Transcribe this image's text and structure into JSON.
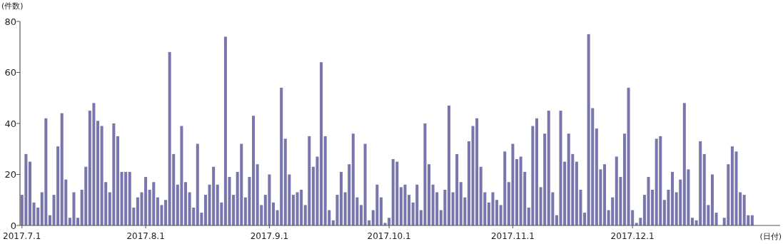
{
  "chart_data": {
    "type": "bar",
    "xlabel": "(日付)",
    "ylabel": "(件数)",
    "color": "#7876ad",
    "x": [
      "2017-07-01",
      "2017-07-02",
      "2017-07-03",
      "2017-07-04",
      "2017-07-05",
      "2017-07-06",
      "2017-07-07",
      "2017-07-08",
      "2017-07-09",
      "2017-07-10",
      "2017-07-11",
      "2017-07-12",
      "2017-07-13",
      "2017-07-14",
      "2017-07-15",
      "2017-07-16",
      "2017-07-17",
      "2017-07-18",
      "2017-07-19",
      "2017-07-20",
      "2017-07-21",
      "2017-07-22",
      "2017-07-23",
      "2017-07-24",
      "2017-07-25",
      "2017-07-26",
      "2017-07-27",
      "2017-07-28",
      "2017-07-29",
      "2017-07-30",
      "2017-07-31",
      "2017-08-01",
      "2017-08-02",
      "2017-08-03",
      "2017-08-04",
      "2017-08-05",
      "2017-08-06",
      "2017-08-07",
      "2017-08-08",
      "2017-08-09",
      "2017-08-10",
      "2017-08-11",
      "2017-08-12",
      "2017-08-13",
      "2017-08-14",
      "2017-08-15",
      "2017-08-16",
      "2017-08-17",
      "2017-08-18",
      "2017-08-19",
      "2017-08-20",
      "2017-08-21",
      "2017-08-22",
      "2017-08-23",
      "2017-08-24",
      "2017-08-25",
      "2017-08-26",
      "2017-08-27",
      "2017-08-28",
      "2017-08-29",
      "2017-08-30",
      "2017-08-31",
      "2017-09-01",
      "2017-09-02",
      "2017-09-03",
      "2017-09-04",
      "2017-09-05",
      "2017-09-06",
      "2017-09-07",
      "2017-09-08",
      "2017-09-09",
      "2017-09-10",
      "2017-09-11",
      "2017-09-12",
      "2017-09-13",
      "2017-09-14",
      "2017-09-15",
      "2017-09-16",
      "2017-09-17",
      "2017-09-18",
      "2017-09-19",
      "2017-09-20",
      "2017-09-21",
      "2017-09-22",
      "2017-09-23",
      "2017-09-24",
      "2017-09-25",
      "2017-09-26",
      "2017-09-27",
      "2017-09-28",
      "2017-09-29",
      "2017-09-30",
      "2017-10-01",
      "2017-10-02",
      "2017-10-03",
      "2017-10-04",
      "2017-10-05",
      "2017-10-06",
      "2017-10-07",
      "2017-10-08",
      "2017-10-09",
      "2017-10-10",
      "2017-10-11",
      "2017-10-12",
      "2017-10-13",
      "2017-10-14",
      "2017-10-15",
      "2017-10-16",
      "2017-10-17",
      "2017-10-18",
      "2017-10-19",
      "2017-10-20",
      "2017-10-21",
      "2017-10-22",
      "2017-10-23",
      "2017-10-24",
      "2017-10-25",
      "2017-10-26",
      "2017-10-27",
      "2017-10-28",
      "2017-10-29",
      "2017-10-30",
      "2017-10-31",
      "2017-11-01",
      "2017-11-02",
      "2017-11-03",
      "2017-11-04",
      "2017-11-05",
      "2017-11-06",
      "2017-11-07",
      "2017-11-08",
      "2017-11-09",
      "2017-11-10",
      "2017-11-11",
      "2017-11-12",
      "2017-11-13",
      "2017-11-14",
      "2017-11-15",
      "2017-11-16",
      "2017-11-17",
      "2017-11-18",
      "2017-11-19",
      "2017-11-20",
      "2017-11-21",
      "2017-11-22",
      "2017-11-23",
      "2017-11-24",
      "2017-11-25",
      "2017-11-26",
      "2017-11-27",
      "2017-11-28",
      "2017-11-29",
      "2017-11-30",
      "2017-12-01",
      "2017-12-02",
      "2017-12-03",
      "2017-12-04",
      "2017-12-05",
      "2017-12-06",
      "2017-12-07",
      "2017-12-08",
      "2017-12-09",
      "2017-12-10",
      "2017-12-11",
      "2017-12-12",
      "2017-12-13",
      "2017-12-14",
      "2017-12-15",
      "2017-12-16",
      "2017-12-17",
      "2017-12-18",
      "2017-12-19",
      "2017-12-20",
      "2017-12-21",
      "2017-12-22",
      "2017-12-23",
      "2017-12-24",
      "2017-12-25",
      "2017-12-26",
      "2017-12-27",
      "2017-12-28",
      "2017-12-29",
      "2017-12-30",
      "2017-12-31"
    ],
    "values": [
      12,
      28,
      25,
      9,
      7,
      13,
      42,
      4,
      12,
      31,
      44,
      18,
      3,
      13,
      3,
      14,
      23,
      45,
      48,
      41,
      39,
      17,
      13,
      40,
      35,
      21,
      21,
      21,
      7,
      11,
      13,
      19,
      14,
      17,
      11,
      8,
      10,
      68,
      28,
      16,
      39,
      17,
      13,
      7,
      32,
      5,
      12,
      16,
      23,
      16,
      9,
      74,
      19,
      12,
      21,
      32,
      11,
      19,
      43,
      24,
      8,
      12,
      20,
      9,
      6,
      54,
      34,
      20,
      12,
      13,
      14,
      8,
      35,
      23,
      27,
      64,
      35,
      6,
      2,
      12,
      21,
      13,
      24,
      36,
      11,
      8,
      32,
      2,
      6,
      16,
      11,
      1,
      3,
      26,
      25,
      15,
      16,
      12,
      9,
      16,
      6,
      40,
      24,
      16,
      13,
      6,
      14,
      47,
      13,
      28,
      17,
      11,
      33,
      39,
      42,
      23,
      13,
      9,
      13,
      10,
      8,
      29,
      17,
      32,
      26,
      27,
      21,
      7,
      39,
      42,
      15,
      36,
      45,
      13,
      4,
      45,
      25,
      36,
      28,
      25,
      14,
      5,
      75,
      46,
      38,
      22,
      24,
      6,
      11,
      27,
      19,
      36,
      54,
      6,
      1,
      3,
      12,
      19,
      14,
      34,
      35,
      10,
      14,
      21,
      13,
      18,
      48,
      22,
      3,
      2,
      33,
      28,
      8,
      20,
      5,
      0,
      3,
      24,
      31,
      29,
      13,
      12,
      4,
      4
    ],
    "xlim": [
      "2017-06-30T12:00",
      "2018-01-07"
    ],
    "xticks": [
      {
        "value": "2017-07-01",
        "label": "2017.7.1"
      },
      {
        "value": "2017-08-01",
        "label": "2017.8.1"
      },
      {
        "value": "2017-09-01",
        "label": "2017.9.1"
      },
      {
        "value": "2017-10-01",
        "label": "2017.10.1"
      },
      {
        "value": "2017-11-01",
        "label": "2017.11.1"
      },
      {
        "value": "2017-12-01",
        "label": "2017.12.1"
      }
    ],
    "ylim": [
      0,
      80
    ],
    "yticks": [
      0,
      20,
      40,
      60,
      80
    ]
  }
}
